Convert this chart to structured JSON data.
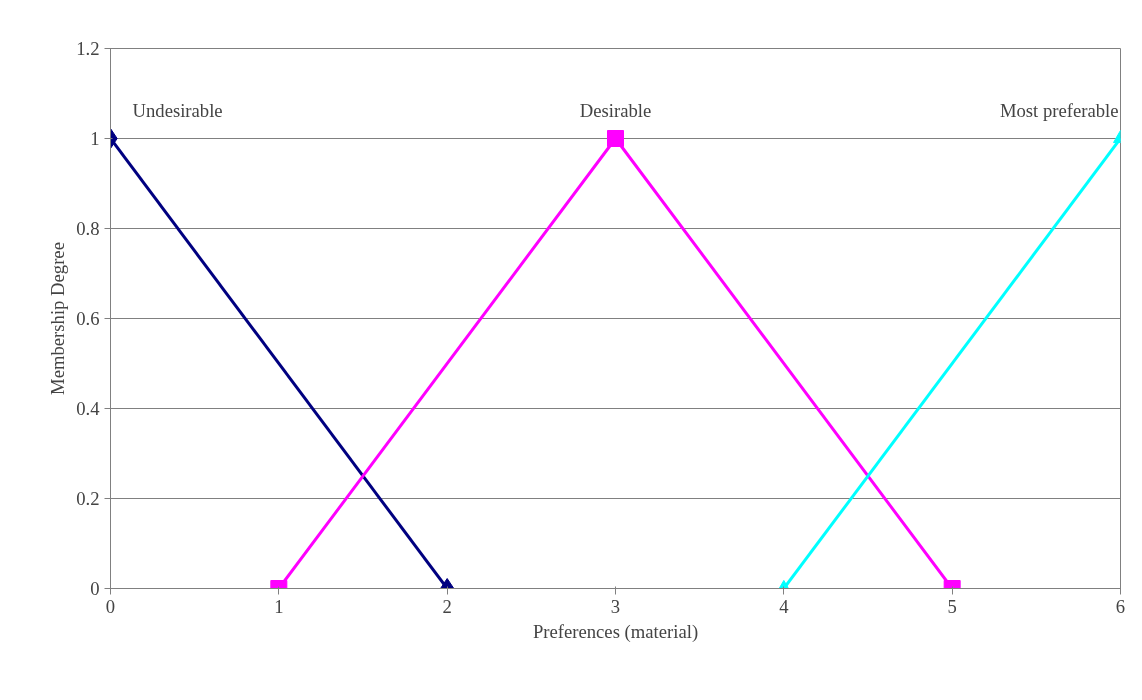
{
  "chart_data": {
    "type": "line",
    "xlabel": "Preferences (material)",
    "ylabel": "Membership Degree",
    "xlim": [
      0,
      6
    ],
    "ylim": [
      0,
      1.2
    ],
    "xticks": [
      0,
      1,
      2,
      3,
      4,
      5,
      6
    ],
    "yticks": [
      0,
      0.2,
      0.4,
      0.6,
      0.8,
      1,
      1.2
    ],
    "grid": "y",
    "legend": false,
    "series": [
      {
        "name": "Undesirable",
        "color": "#000080",
        "marker": "diamond",
        "x": [
          0,
          2
        ],
        "values": [
          1,
          0
        ]
      },
      {
        "name": "Desirable",
        "color": "#ff00ff",
        "marker": "square",
        "x": [
          1,
          3,
          5
        ],
        "values": [
          0,
          1,
          0
        ]
      },
      {
        "name": "Most preferable",
        "color": "#00ffff",
        "marker": "triangle",
        "x": [
          4,
          6
        ],
        "values": [
          0,
          1
        ]
      }
    ]
  }
}
